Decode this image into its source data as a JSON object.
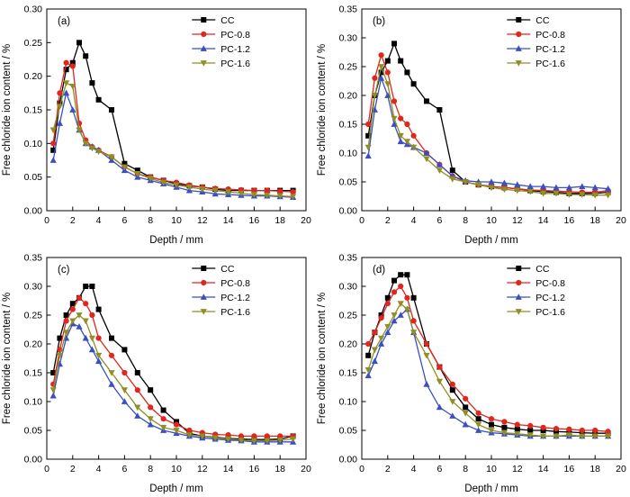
{
  "figure_title": "",
  "chart_data": [
    {
      "type": "line",
      "panel_label": "(a)",
      "xlabel": "Depth / mm",
      "ylabel": "Free chloride ion content / %",
      "xlim": [
        0,
        20
      ],
      "ylim": [
        0,
        0.3
      ],
      "xtick_step": 2,
      "ytick_step": 0.05,
      "grid": false,
      "legend_position": "top-right",
      "x": [
        0.5,
        1,
        1.5,
        2,
        2.5,
        3,
        3.5,
        4,
        5,
        6,
        7,
        8,
        9,
        10,
        11,
        12,
        13,
        14,
        15,
        16,
        17,
        18,
        19
      ],
      "series": [
        {
          "name": "CC",
          "color": "#000000",
          "marker": "square",
          "values": [
            0.09,
            0.16,
            0.21,
            0.22,
            0.25,
            0.23,
            0.19,
            0.165,
            0.15,
            0.07,
            0.06,
            0.05,
            0.045,
            0.04,
            0.037,
            0.035,
            0.032,
            0.03,
            0.03,
            0.03,
            0.03,
            0.03,
            0.03
          ]
        },
        {
          "name": "PC-0.8",
          "color": "#e0261e",
          "marker": "circle",
          "values": [
            0.1,
            0.175,
            0.22,
            0.215,
            0.13,
            0.105,
            0.095,
            0.09,
            0.08,
            0.065,
            0.055,
            0.05,
            0.045,
            0.042,
            0.038,
            0.035,
            0.033,
            0.032,
            0.031,
            0.03,
            0.03,
            0.029,
            0.028
          ]
        },
        {
          "name": "PC-1.2",
          "color": "#3a4fc1",
          "marker": "triangle-up",
          "values": [
            0.075,
            0.13,
            0.175,
            0.15,
            0.12,
            0.1,
            0.095,
            0.09,
            0.075,
            0.06,
            0.05,
            0.045,
            0.04,
            0.035,
            0.03,
            0.028,
            0.025,
            0.024,
            0.023,
            0.022,
            0.022,
            0.021,
            0.02
          ]
        },
        {
          "name": "PC-1.6",
          "color": "#8f8f26",
          "marker": "triangle-down",
          "values": [
            0.12,
            0.155,
            0.19,
            0.185,
            0.12,
            0.1,
            0.093,
            0.088,
            0.08,
            0.065,
            0.055,
            0.048,
            0.042,
            0.038,
            0.035,
            0.032,
            0.03,
            0.028,
            0.026,
            0.024,
            0.023,
            0.022,
            0.021
          ]
        }
      ]
    },
    {
      "type": "line",
      "panel_label": "(b)",
      "xlabel": "Depth / mm",
      "ylabel": "Free chloride ion content / %",
      "xlim": [
        0,
        20
      ],
      "ylim": [
        0,
        0.35
      ],
      "xtick_step": 2,
      "ytick_step": 0.05,
      "grid": false,
      "legend_position": "top-right",
      "x": [
        0.5,
        1,
        1.5,
        2,
        2.5,
        3,
        3.5,
        4,
        5,
        6,
        7,
        8,
        9,
        10,
        11,
        12,
        13,
        14,
        15,
        16,
        17,
        18,
        19
      ],
      "series": [
        {
          "name": "CC",
          "color": "#000000",
          "marker": "square",
          "values": [
            0.13,
            0.2,
            0.24,
            0.26,
            0.29,
            0.26,
            0.24,
            0.22,
            0.19,
            0.175,
            0.07,
            0.05,
            0.045,
            0.042,
            0.04,
            0.038,
            0.035,
            0.033,
            0.032,
            0.03,
            0.03,
            0.03,
            0.032
          ]
        },
        {
          "name": "PC-0.8",
          "color": "#e0261e",
          "marker": "circle",
          "values": [
            0.15,
            0.23,
            0.27,
            0.24,
            0.19,
            0.16,
            0.15,
            0.13,
            0.1,
            0.08,
            0.06,
            0.05,
            0.045,
            0.042,
            0.04,
            0.038,
            0.036,
            0.035,
            0.034,
            0.033,
            0.032,
            0.032,
            0.035
          ]
        },
        {
          "name": "PC-1.2",
          "color": "#3a4fc1",
          "marker": "triangle-up",
          "values": [
            0.095,
            0.175,
            0.23,
            0.2,
            0.15,
            0.12,
            0.115,
            0.11,
            0.1,
            0.08,
            0.06,
            0.052,
            0.05,
            0.05,
            0.048,
            0.045,
            0.042,
            0.042,
            0.04,
            0.04,
            0.042,
            0.04,
            0.038
          ]
        },
        {
          "name": "PC-1.6",
          "color": "#8f8f26",
          "marker": "triangle-down",
          "values": [
            0.11,
            0.2,
            0.25,
            0.22,
            0.16,
            0.13,
            0.12,
            0.11,
            0.09,
            0.07,
            0.055,
            0.05,
            0.045,
            0.04,
            0.037,
            0.035,
            0.033,
            0.03,
            0.03,
            0.028,
            0.028,
            0.027,
            0.027
          ]
        }
      ]
    },
    {
      "type": "line",
      "panel_label": "(c)",
      "xlabel": "Depth / mm",
      "ylabel": "Free chloride ion content / %",
      "xlim": [
        0,
        20
      ],
      "ylim": [
        0,
        0.35
      ],
      "xtick_step": 2,
      "ytick_step": 0.05,
      "grid": false,
      "legend_position": "top-right",
      "x": [
        0.5,
        1,
        1.5,
        2,
        2.5,
        3,
        3.5,
        4,
        5,
        6,
        7,
        8,
        9,
        10,
        11,
        12,
        13,
        14,
        15,
        16,
        17,
        18,
        19
      ],
      "series": [
        {
          "name": "CC",
          "color": "#000000",
          "marker": "square",
          "values": [
            0.15,
            0.21,
            0.25,
            0.27,
            0.28,
            0.3,
            0.3,
            0.26,
            0.21,
            0.19,
            0.15,
            0.12,
            0.085,
            0.065,
            0.045,
            0.04,
            0.038,
            0.036,
            0.035,
            0.034,
            0.034,
            0.035,
            0.04
          ]
        },
        {
          "name": "PC-0.8",
          "color": "#e0261e",
          "marker": "circle",
          "values": [
            0.13,
            0.19,
            0.24,
            0.26,
            0.28,
            0.27,
            0.25,
            0.21,
            0.18,
            0.15,
            0.12,
            0.09,
            0.07,
            0.06,
            0.05,
            0.046,
            0.043,
            0.042,
            0.04,
            0.04,
            0.04,
            0.04,
            0.04
          ]
        },
        {
          "name": "PC-1.2",
          "color": "#3a4fc1",
          "marker": "triangle-up",
          "values": [
            0.11,
            0.165,
            0.21,
            0.235,
            0.23,
            0.21,
            0.19,
            0.17,
            0.13,
            0.1,
            0.075,
            0.06,
            0.05,
            0.045,
            0.04,
            0.037,
            0.035,
            0.033,
            0.032,
            0.03,
            0.03,
            0.03,
            0.03
          ]
        },
        {
          "name": "PC-1.6",
          "color": "#8f8f26",
          "marker": "triangle-down",
          "values": [
            0.12,
            0.18,
            0.22,
            0.24,
            0.25,
            0.24,
            0.21,
            0.18,
            0.15,
            0.12,
            0.09,
            0.07,
            0.055,
            0.05,
            0.042,
            0.04,
            0.037,
            0.035,
            0.033,
            0.032,
            0.032,
            0.033,
            0.035
          ]
        }
      ]
    },
    {
      "type": "line",
      "panel_label": "(d)",
      "xlabel": "Depth / mm",
      "ylabel": "Free chloride ion content / %",
      "xlim": [
        0,
        20
      ],
      "ylim": [
        0,
        0.35
      ],
      "xtick_step": 2,
      "ytick_step": 0.05,
      "grid": false,
      "legend_position": "top-right",
      "x": [
        0.5,
        1,
        1.5,
        2,
        2.5,
        3,
        3.5,
        4,
        5,
        6,
        7,
        8,
        9,
        10,
        11,
        12,
        13,
        14,
        15,
        16,
        17,
        18,
        19
      ],
      "series": [
        {
          "name": "CC",
          "color": "#000000",
          "marker": "square",
          "values": [
            0.18,
            0.22,
            0.25,
            0.28,
            0.31,
            0.32,
            0.32,
            0.28,
            0.2,
            0.16,
            0.12,
            0.09,
            0.07,
            0.06,
            0.055,
            0.052,
            0.05,
            0.05,
            0.048,
            0.047,
            0.046,
            0.045,
            0.045
          ]
        },
        {
          "name": "PC-0.8",
          "color": "#e0261e",
          "marker": "circle",
          "values": [
            0.2,
            0.22,
            0.245,
            0.27,
            0.29,
            0.3,
            0.28,
            0.24,
            0.2,
            0.16,
            0.13,
            0.105,
            0.08,
            0.07,
            0.065,
            0.06,
            0.058,
            0.055,
            0.053,
            0.052,
            0.05,
            0.05,
            0.048
          ]
        },
        {
          "name": "PC-1.2",
          "color": "#3a4fc1",
          "marker": "triangle-up",
          "values": [
            0.145,
            0.17,
            0.2,
            0.22,
            0.24,
            0.25,
            0.26,
            0.22,
            0.13,
            0.09,
            0.075,
            0.06,
            0.05,
            0.046,
            0.044,
            0.042,
            0.04,
            0.04,
            0.04,
            0.04,
            0.04,
            0.04,
            0.04
          ]
        },
        {
          "name": "PC-1.6",
          "color": "#8f8f26",
          "marker": "triangle-down",
          "values": [
            0.155,
            0.19,
            0.21,
            0.23,
            0.25,
            0.27,
            0.26,
            0.22,
            0.18,
            0.135,
            0.1,
            0.08,
            0.06,
            0.05,
            0.046,
            0.044,
            0.042,
            0.04,
            0.04,
            0.042,
            0.04,
            0.04,
            0.04
          ]
        }
      ]
    }
  ]
}
